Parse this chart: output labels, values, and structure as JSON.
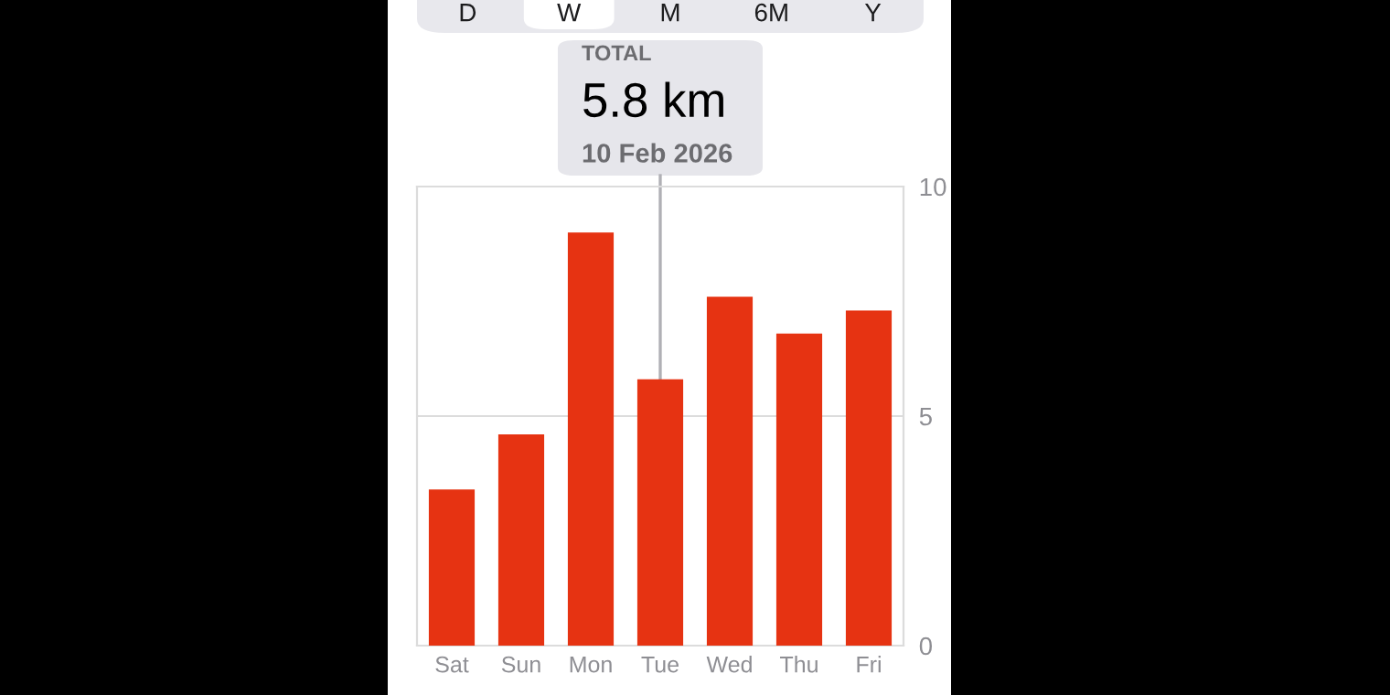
{
  "chart_data": {
    "type": "bar",
    "categories": [
      "Sat",
      "Sun",
      "Mon",
      "Tue",
      "Wed",
      "Thu",
      "Fri"
    ],
    "values": [
      3.4,
      4.6,
      9.0,
      5.8,
      7.6,
      6.8,
      7.3
    ],
    "color": "#e63312",
    "ylim": [
      0,
      10
    ],
    "yticks": [
      0,
      5,
      10
    ],
    "grid": "y",
    "annotations": [
      "D",
      "W",
      "M",
      "6M",
      "Y",
      "TOTAL",
      "5.8 km",
      "10 Feb 2026"
    ]
  }
}
